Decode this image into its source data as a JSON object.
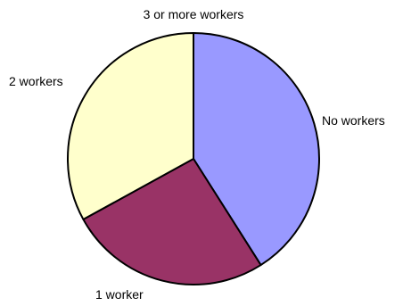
{
  "chart_data": {
    "type": "pie",
    "title": "",
    "legend": "none",
    "start_angle_deg": -90,
    "direction": "clockwise",
    "slices": [
      {
        "label": "No workers",
        "value": 0.41,
        "color": "#9999ff"
      },
      {
        "label": "1 worker",
        "value": 0.26,
        "color": "#993366"
      },
      {
        "label": "2 workers",
        "value": 0.33,
        "color": "#ffffcc"
      },
      {
        "label": "3 or more workers",
        "value": 0.0,
        "color": "#ccffff"
      }
    ]
  }
}
